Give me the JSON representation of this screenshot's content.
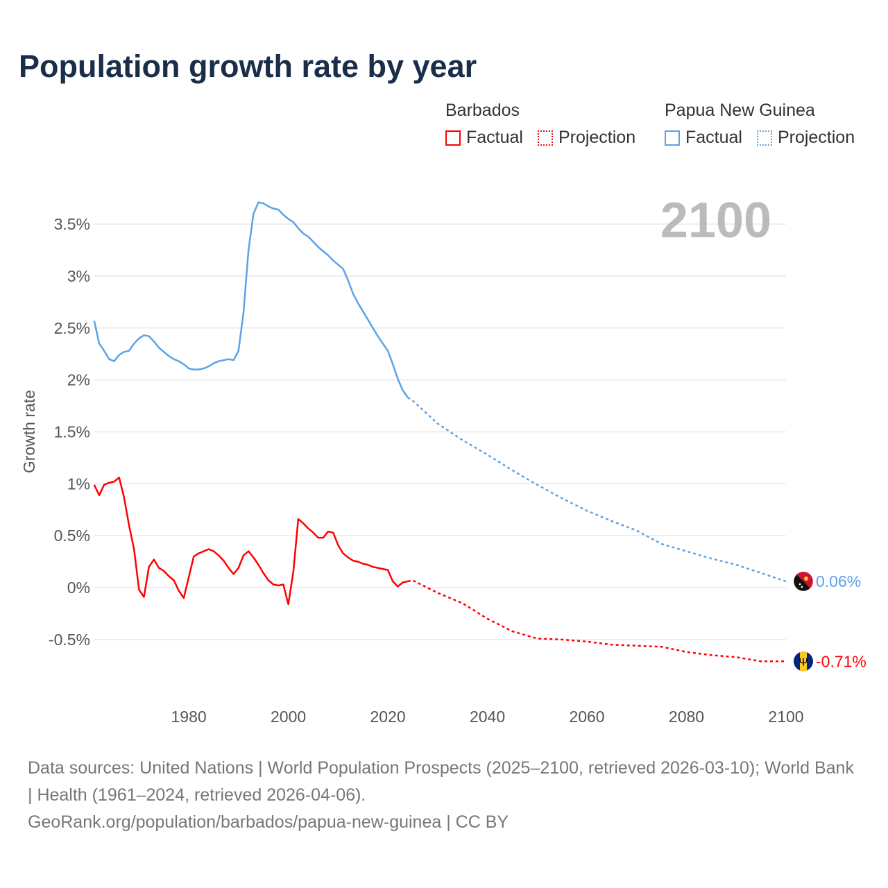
{
  "title": "Population growth rate by year",
  "legend": {
    "groups": [
      {
        "name": "Barbados",
        "factual": "Factual",
        "projection": "Projection",
        "color": "#ff0000"
      },
      {
        "name": "Papua New Guinea",
        "factual": "Factual",
        "projection": "Projection",
        "color": "#5aa3e8"
      }
    ]
  },
  "footer": {
    "sources": "Data sources: United Nations | World Population Prospects (2025–2100, retrieved 2026-03-10); World Bank | Health (1961–2024, retrieved 2026-04-06).",
    "credit": "GeoRank.org/population/barbados/papua-new-guinea | CC BY"
  },
  "chart_data": {
    "type": "line",
    "title": "Population growth rate by year",
    "year_label": "2100",
    "xlabel": "",
    "ylabel": "Growth rate",
    "xlim": [
      1961,
      2100
    ],
    "ylim": [
      -0.95,
      3.85
    ],
    "xticks": [
      1980,
      2000,
      2020,
      2040,
      2060,
      2080,
      2100
    ],
    "yticks": [
      -0.5,
      0,
      0.5,
      1,
      1.5,
      2,
      2.5,
      3,
      3.5
    ],
    "ytick_labels": [
      "-0.5%",
      "0%",
      "0.5%",
      "1%",
      "1.5%",
      "2%",
      "2.5%",
      "3%",
      "3.5%"
    ],
    "series": [
      {
        "name": "Papua New Guinea",
        "color": "#5aa3e8",
        "end_label": "0.06%",
        "factual": {
          "x": [
            1961,
            1962,
            1963,
            1964,
            1965,
            1966,
            1967,
            1968,
            1969,
            1970,
            1971,
            1972,
            1973,
            1974,
            1975,
            1976,
            1977,
            1978,
            1979,
            1980,
            1981,
            1982,
            1983,
            1984,
            1985,
            1986,
            1987,
            1988,
            1989,
            1990,
            1991,
            1992,
            1993,
            1994,
            1995,
            1996,
            1997,
            1998,
            1999,
            2000,
            2001,
            2002,
            2003,
            2004,
            2005,
            2006,
            2007,
            2008,
            2009,
            2010,
            2011,
            2012,
            2013,
            2014,
            2015,
            2016,
            2017,
            2018,
            2019,
            2020,
            2021,
            2022,
            2023,
            2024
          ],
          "y": [
            2.57,
            2.35,
            2.28,
            2.2,
            2.18,
            2.24,
            2.27,
            2.28,
            2.35,
            2.4,
            2.43,
            2.42,
            2.37,
            2.31,
            2.27,
            2.23,
            2.2,
            2.18,
            2.15,
            2.11,
            2.1,
            2.1,
            2.11,
            2.13,
            2.16,
            2.18,
            2.19,
            2.2,
            2.19,
            2.28,
            2.65,
            3.25,
            3.6,
            3.71,
            3.7,
            3.67,
            3.65,
            3.64,
            3.59,
            3.55,
            3.52,
            3.46,
            3.41,
            3.38,
            3.33,
            3.28,
            3.24,
            3.2,
            3.15,
            3.11,
            3.07,
            2.96,
            2.83,
            2.74,
            2.66,
            2.58,
            2.5,
            2.42,
            2.35,
            2.28,
            2.15,
            2.01,
            1.9,
            1.83
          ]
        },
        "projection": {
          "x": [
            2024,
            2025,
            2030,
            2035,
            2040,
            2045,
            2050,
            2055,
            2060,
            2065,
            2070,
            2075,
            2080,
            2085,
            2090,
            2095,
            2100
          ],
          "y": [
            1.83,
            1.8,
            1.58,
            1.42,
            1.28,
            1.13,
            0.99,
            0.86,
            0.74,
            0.64,
            0.55,
            0.42,
            0.35,
            0.28,
            0.22,
            0.14,
            0.06
          ]
        }
      },
      {
        "name": "Barbados",
        "color": "#ff0000",
        "end_label": "-0.71%",
        "factual": {
          "x": [
            1961,
            1962,
            1963,
            1964,
            1965,
            1966,
            1967,
            1968,
            1969,
            1970,
            1971,
            1972,
            1973,
            1974,
            1975,
            1976,
            1977,
            1978,
            1979,
            1980,
            1981,
            1982,
            1983,
            1984,
            1985,
            1986,
            1987,
            1988,
            1989,
            1990,
            1991,
            1992,
            1993,
            1994,
            1995,
            1996,
            1997,
            1998,
            1999,
            2000,
            2001,
            2002,
            2003,
            2004,
            2005,
            2006,
            2007,
            2008,
            2009,
            2010,
            2011,
            2012,
            2013,
            2014,
            2015,
            2016,
            2017,
            2018,
            2019,
            2020,
            2021,
            2022,
            2023,
            2024
          ],
          "y": [
            0.99,
            0.89,
            0.99,
            1.01,
            1.02,
            1.06,
            0.87,
            0.6,
            0.37,
            -0.02,
            -0.09,
            0.2,
            0.27,
            0.19,
            0.16,
            0.11,
            0.07,
            -0.03,
            -0.1,
            0.1,
            0.3,
            0.33,
            0.35,
            0.37,
            0.35,
            0.31,
            0.26,
            0.19,
            0.13,
            0.19,
            0.31,
            0.35,
            0.29,
            0.22,
            0.14,
            0.07,
            0.03,
            0.02,
            0.03,
            -0.16,
            0.15,
            0.66,
            0.62,
            0.57,
            0.53,
            0.48,
            0.48,
            0.54,
            0.53,
            0.41,
            0.33,
            0.29,
            0.26,
            0.25,
            0.23,
            0.22,
            0.2,
            0.19,
            0.18,
            0.17,
            0.06,
            0.01,
            0.05,
            0.06
          ]
        },
        "projection": {
          "x": [
            2024,
            2025,
            2030,
            2035,
            2040,
            2045,
            2050,
            2055,
            2060,
            2065,
            2070,
            2075,
            2080,
            2085,
            2090,
            2095,
            2100
          ],
          "y": [
            0.06,
            0.07,
            -0.05,
            -0.15,
            -0.3,
            -0.42,
            -0.49,
            -0.5,
            -0.52,
            -0.55,
            -0.56,
            -0.57,
            -0.62,
            -0.65,
            -0.67,
            -0.71,
            -0.71
          ]
        }
      }
    ]
  }
}
